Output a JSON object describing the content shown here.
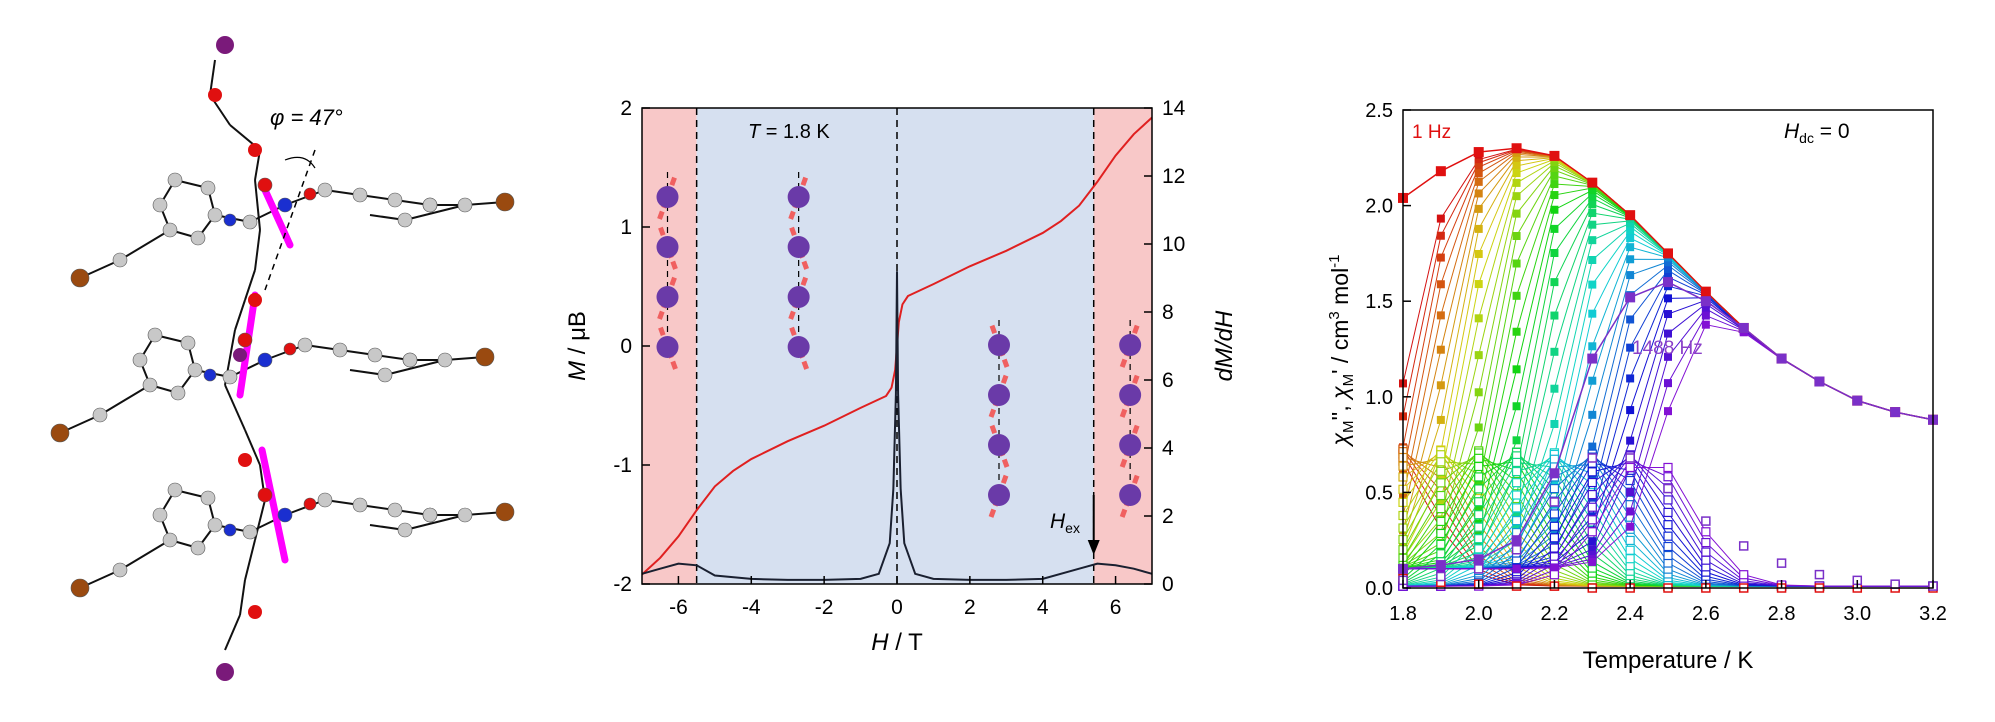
{
  "panel_a": {
    "angle_label": "φ = 47°"
  },
  "colors": {
    "chain": "#ff00ff",
    "carbon": "#c8c8c8",
    "oxygen": "#e01010",
    "nitrogen": "#1a2fd0",
    "bromine": "#9a4a10",
    "dysprosium": "#7a1a7a",
    "field_shade_outer": "#f8c8c8",
    "field_shade_inner": "#d6e0f0",
    "magnetization": "#e02020",
    "derivative": "#1a2030",
    "spin_ball": "#6a3aa8",
    "spin_arrow": "#f06060"
  },
  "chart_data": [
    {
      "type": "line",
      "title": "",
      "annotation": "T = 1.8 K",
      "xlabel": "H / T",
      "ylabel": "M / μB",
      "y2label": "dM/dH",
      "xlim": [
        -7,
        7
      ],
      "ylim": [
        -2,
        2
      ],
      "y2lim": [
        0,
        14
      ],
      "xticks": [
        -6,
        -4,
        -2,
        0,
        2,
        4,
        6
      ],
      "yticks": [
        -2,
        -1,
        0,
        1,
        2
      ],
      "y2ticks": [
        0,
        2,
        4,
        6,
        8,
        10,
        12,
        14
      ],
      "regions": [
        {
          "from": -7,
          "to": -5.5,
          "shade": "outer"
        },
        {
          "from": -5.5,
          "to": 5.4,
          "shade": "inner"
        },
        {
          "from": 5.4,
          "to": 7,
          "shade": "outer"
        }
      ],
      "dashed_lines_x": [
        -5.5,
        0,
        5.4
      ],
      "hex_label": "H",
      "hex_sub": "ex",
      "hex_x": 5.4,
      "series": [
        {
          "axis": "left",
          "color": "#e02020",
          "x": [
            -7,
            -6.5,
            -6,
            -5.5,
            -5,
            -4.5,
            -4,
            -3,
            -2,
            -1,
            -0.3,
            -0.15,
            -0.05,
            0,
            0.05,
            0.15,
            0.3,
            1,
            2,
            3,
            4,
            4.5,
            5,
            5.5,
            6,
            6.5,
            7
          ],
          "y": [
            -1.92,
            -1.78,
            -1.6,
            -1.38,
            -1.18,
            -1.05,
            -0.95,
            -0.8,
            -0.67,
            -0.52,
            -0.42,
            -0.35,
            -0.2,
            0,
            0.2,
            0.35,
            0.42,
            0.52,
            0.67,
            0.8,
            0.95,
            1.05,
            1.18,
            1.38,
            1.6,
            1.78,
            1.92
          ]
        },
        {
          "axis": "right",
          "color": "#1a2030",
          "x": [
            -7,
            -6.5,
            -6,
            -5.5,
            -5,
            -4,
            -3,
            -2,
            -1,
            -0.5,
            -0.2,
            -0.1,
            -0.03,
            0,
            0.03,
            0.1,
            0.2,
            0.5,
            1,
            2,
            3,
            4,
            5,
            5.5,
            6,
            6.5,
            7
          ],
          "y": [
            0.3,
            0.45,
            0.6,
            0.55,
            0.25,
            0.15,
            0.12,
            0.12,
            0.15,
            0.3,
            1.2,
            2.8,
            5.6,
            9.2,
            5.6,
            2.8,
            1.2,
            0.3,
            0.15,
            0.12,
            0.12,
            0.15,
            0.45,
            0.6,
            0.55,
            0.45,
            0.3
          ]
        }
      ]
    },
    {
      "type": "scatter",
      "title": "",
      "xlabel": "Temperature / K",
      "ylabel": "χM'', χM' / cm3 mol-1",
      "xlim": [
        1.8,
        3.2
      ],
      "ylim": [
        0,
        2.5
      ],
      "xticks": [
        1.8,
        2.0,
        2.2,
        2.4,
        2.6,
        2.8,
        3.0,
        3.2
      ],
      "yticks": [
        0.0,
        0.5,
        1.0,
        1.5,
        2.0,
        2.5
      ],
      "annotations": [
        "1 Hz",
        "1488 Hz",
        "Hdc = 0"
      ],
      "T": [
        1.8,
        1.9,
        2.0,
        2.1,
        2.2,
        2.3,
        2.4,
        2.5,
        2.6,
        2.7,
        2.8,
        2.9,
        3.0,
        3.1,
        3.2
      ],
      "highlight_series": [
        {
          "name": "1 Hz",
          "color": "#e01010",
          "chi_prime": [
            2.04,
            2.18,
            2.28,
            2.3,
            2.26,
            2.12,
            1.95,
            1.75,
            1.55,
            1.36,
            1.2,
            1.08,
            0.98,
            0.92,
            0.88
          ],
          "chi_double_prime": [
            0.05,
            0.03,
            0.02,
            0.01,
            0.01,
            0.0,
            0.0,
            0.0,
            0.0,
            0.0,
            0.0,
            0.0,
            0.0,
            0.0,
            0.0
          ]
        },
        {
          "name": "1488 Hz",
          "color": "#7a30c8",
          "chi_prime": [
            0.1,
            0.12,
            0.15,
            0.25,
            0.6,
            1.2,
            1.52,
            1.6,
            1.5,
            1.36,
            1.2,
            1.08,
            0.98,
            0.92,
            0.88
          ],
          "chi_double_prime": [
            0.04,
            0.06,
            0.1,
            0.2,
            0.45,
            0.68,
            0.68,
            0.52,
            0.35,
            0.22,
            0.13,
            0.07,
            0.04,
            0.02,
            0.01
          ]
        }
      ],
      "frequency_count": 40
    }
  ]
}
